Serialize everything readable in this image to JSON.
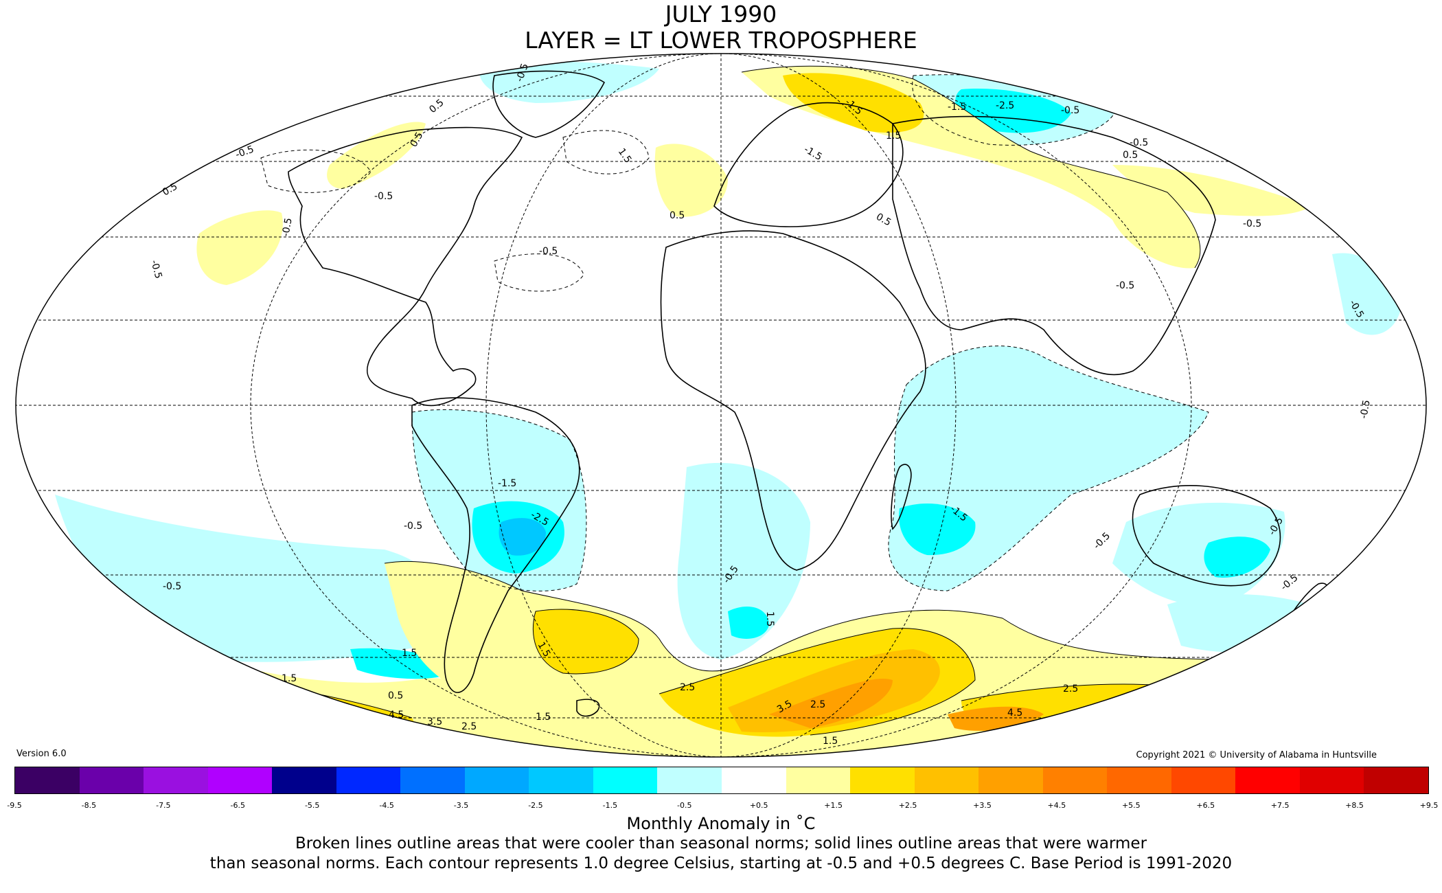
{
  "header": {
    "title_line1": "JULY 1990",
    "title_line2": "LAYER = LT LOWER TROPOSPHERE"
  },
  "map": {
    "projection": "mollweide",
    "contour_labels": [
      "-0.5",
      "-0.5",
      "0.5",
      "0.5",
      "0.5",
      "-0.5",
      "1.5",
      "-0.5",
      "-0.5",
      "-1.5",
      "-0.5",
      "-1.5",
      "0.5",
      "1.5",
      "-1.5",
      "-2.5",
      "-0.5",
      "0.5",
      "-0.5",
      "0.5",
      "-0.5",
      "-0.5",
      "-0.5",
      "-0.5",
      "-1.5",
      "-2.5",
      "-0.5",
      "-0.5",
      "-1.5",
      "-0.5",
      "-0.5",
      "-0.5",
      "-0.5",
      "1.5",
      "1.5",
      "1.5",
      "2.5",
      "3.5",
      "2.5",
      "1.5",
      "0.5",
      "4.5",
      "3.5",
      "2.5",
      "2.5",
      "4.5",
      "1.5",
      "1.5"
    ]
  },
  "version": "Version 6.0",
  "copyright": "Copyright 2021 © University of Alabama in Huntsville",
  "colorbar": {
    "colors": [
      "#3b0064",
      "#6a00aa",
      "#9a10e0",
      "#b000ff",
      "#00008c",
      "#0028ff",
      "#0070ff",
      "#00a8ff",
      "#00c8ff",
      "#00ffff",
      "#c0ffff",
      "#ffffff",
      "#ffffa0",
      "#ffe000",
      "#ffc000",
      "#ffa000",
      "#ff8000",
      "#ff6800",
      "#ff4800",
      "#ff0000",
      "#e00000",
      "#c00000"
    ],
    "ticks": [
      "-9.5",
      "-8.5",
      "-7.5",
      "-6.5",
      "-5.5",
      "-4.5",
      "-3.5",
      "-2.5",
      "-1.5",
      "-0.5",
      "+0.5",
      "+1.5",
      "+2.5",
      "+3.5",
      "+4.5",
      "+5.5",
      "+6.5",
      "+7.5",
      "+8.5",
      "+9.5"
    ]
  },
  "legend": {
    "unit_label": "Monthly Anomaly in ˚C",
    "note_line1": "Broken lines outline areas that were cooler than seasonal norms; solid lines outline areas that were warmer",
    "note_line2": "than seasonal norms. Each contour represents 1.0 degree Celsius, starting at -0.5 and +0.5 degrees C. Base Period is 1991-2020"
  }
}
